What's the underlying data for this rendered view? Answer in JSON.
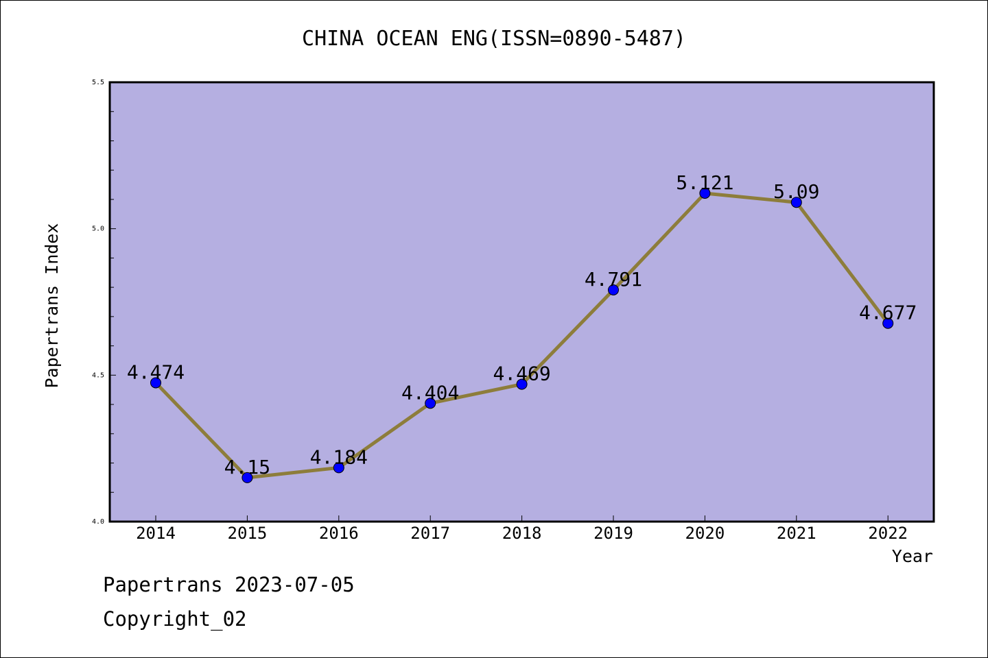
{
  "chart_data": {
    "type": "line",
    "title": "CHINA OCEAN ENG(ISSN=0890-5487)",
    "xlabel": "Year",
    "ylabel": "Papertrans Index",
    "categories": [
      "2014",
      "2015",
      "2016",
      "2017",
      "2018",
      "2019",
      "2020",
      "2021",
      "2022"
    ],
    "values": [
      4.474,
      4.15,
      4.184,
      4.404,
      4.469,
      4.791,
      5.121,
      5.09,
      4.677
    ],
    "value_labels": [
      "4.474",
      "4.15",
      "4.184",
      "4.404",
      "4.469",
      "4.791",
      "5.121",
      "5.09",
      "4.677"
    ],
    "ylim": [
      4.0,
      5.5
    ],
    "yticks": [
      "4.0",
      "4.5",
      "5.0",
      "5.5"
    ],
    "grid": false,
    "colors": {
      "plot_background": "#b5afe1",
      "line": "#8d7d3b",
      "marker": "#0000ff"
    }
  },
  "footer": {
    "line1": "Papertrans 2023-07-05",
    "line2": "Copyright_02"
  }
}
